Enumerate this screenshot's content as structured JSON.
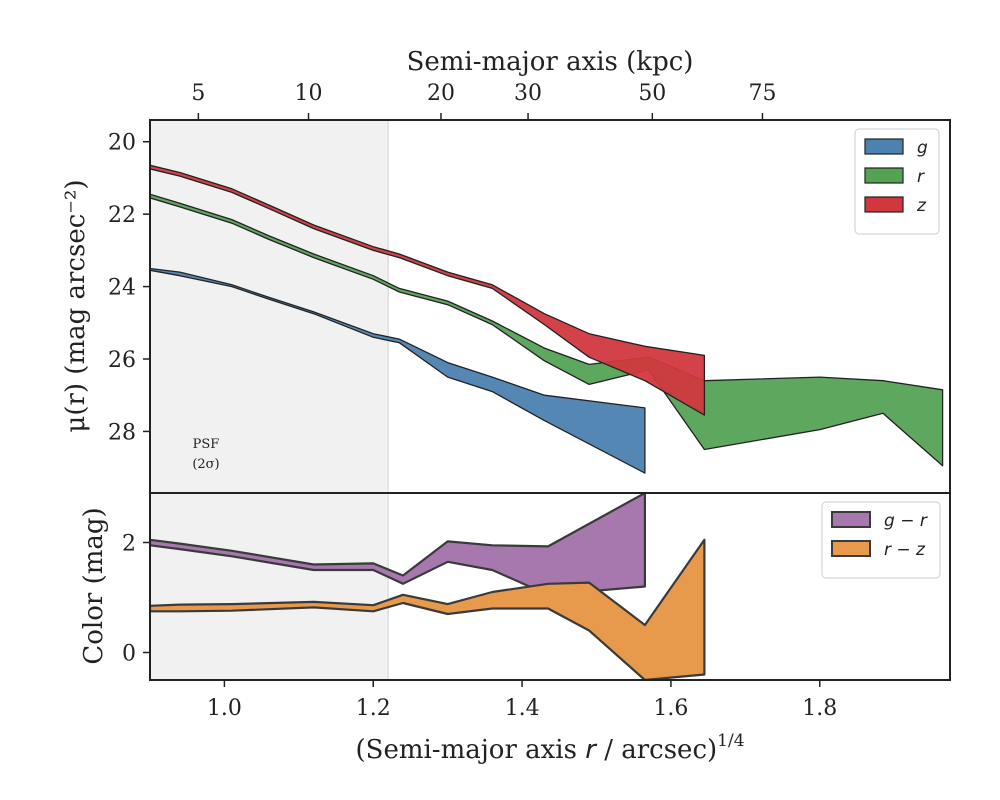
{
  "chart_data": [
    {
      "type": "area",
      "panel": "surface-brightness",
      "top_axis": {
        "label": "Semi-major axis (kpc)",
        "ticks": [
          {
            "label": "5",
            "x": 0.965
          },
          {
            "label": "10",
            "x": 1.113
          },
          {
            "label": "20",
            "x": 1.291
          },
          {
            "label": "30",
            "x": 1.408
          },
          {
            "label": "50",
            "x": 1.575
          },
          {
            "label": "75",
            "x": 1.723
          }
        ]
      },
      "xlim": [
        0.9,
        1.975
      ],
      "ylim": [
        29.7,
        19.4
      ],
      "y_inverted": true,
      "ylabel": "μ(r) (mag arcsec⁻²)",
      "yticks": [
        20,
        22,
        24,
        26,
        28
      ],
      "shaded_region": {
        "x": [
          0.9,
          1.22
        ],
        "label_lines": [
          "PSF",
          "(2σ)"
        ]
      },
      "legend": {
        "position": "top-right",
        "entries": [
          "g",
          "r",
          "z"
        ]
      },
      "series": [
        {
          "name": "g",
          "color": "#4c81b0",
          "x": [
            0.9,
            0.94,
            1.01,
            1.06,
            1.12,
            1.2,
            1.235,
            1.3,
            1.36,
            1.43,
            1.565
          ],
          "y_bright": [
            23.5,
            23.6,
            23.95,
            24.3,
            24.7,
            25.3,
            25.45,
            26.1,
            26.5,
            27.0,
            27.35
          ],
          "y_faint": [
            23.55,
            23.7,
            24.0,
            24.35,
            24.75,
            25.4,
            25.55,
            26.5,
            26.9,
            27.7,
            29.15
          ]
        },
        {
          "name": "r",
          "color": "#55a255",
          "x": [
            0.9,
            0.94,
            1.01,
            1.06,
            1.12,
            1.2,
            1.235,
            1.3,
            1.36,
            1.43,
            1.49,
            1.57,
            1.645,
            1.8,
            1.885,
            1.965
          ],
          "y_bright": [
            21.45,
            21.7,
            22.15,
            22.6,
            23.1,
            23.7,
            24.05,
            24.4,
            24.95,
            25.7,
            26.15,
            25.95,
            26.6,
            26.5,
            26.6,
            26.85
          ],
          "y_faint": [
            21.55,
            21.8,
            22.25,
            22.7,
            23.2,
            23.8,
            24.15,
            24.5,
            25.05,
            26.05,
            26.7,
            26.3,
            28.5,
            27.95,
            27.5,
            28.95
          ]
        },
        {
          "name": "z",
          "color": "#d0383e",
          "x": [
            0.9,
            0.94,
            1.01,
            1.06,
            1.12,
            1.2,
            1.235,
            1.3,
            1.36,
            1.43,
            1.49,
            1.565,
            1.645
          ],
          "y_bright": [
            20.65,
            20.85,
            21.3,
            21.75,
            22.3,
            22.9,
            23.1,
            23.6,
            23.95,
            24.75,
            25.3,
            25.65,
            25.9
          ],
          "y_faint": [
            20.75,
            20.95,
            21.4,
            21.85,
            22.4,
            23.0,
            23.2,
            23.7,
            24.05,
            25.05,
            25.95,
            26.6,
            27.55
          ]
        }
      ]
    },
    {
      "type": "area",
      "panel": "color",
      "xlim": [
        0.9,
        1.975
      ],
      "ylim": [
        -0.5,
        2.9
      ],
      "xlabel": "(Semi-major axis r / arcsec)^1/4",
      "xlabel_parts": {
        "prefix": "(Semi-major axis ",
        "var": "r",
        "suffix": " / arcsec)",
        "sup": "1/4"
      },
      "ylabel": "Color (mag)",
      "xticks": [
        "1.0",
        "1.2",
        "1.4",
        "1.6",
        "1.8"
      ],
      "xtick_values": [
        1.0,
        1.2,
        1.4,
        1.6,
        1.8
      ],
      "yticks": [
        0,
        2
      ],
      "legend": {
        "position": "top-right",
        "entries": [
          "g − r",
          "r − z"
        ]
      },
      "series": [
        {
          "name": "g − r",
          "color": "#a678ae",
          "x": [
            0.9,
            0.94,
            1.01,
            1.12,
            1.2,
            1.24,
            1.3,
            1.36,
            1.435,
            1.565
          ],
          "y_upper": [
            2.05,
            1.98,
            1.85,
            1.6,
            1.62,
            1.4,
            2.02,
            1.95,
            1.93,
            2.9
          ],
          "y_lower": [
            1.95,
            1.88,
            1.75,
            1.5,
            1.5,
            1.25,
            1.65,
            1.5,
            1.05,
            1.2
          ]
        },
        {
          "name": "r − z",
          "color": "#e89a4c",
          "x": [
            0.9,
            0.94,
            1.01,
            1.12,
            1.2,
            1.24,
            1.3,
            1.36,
            1.435,
            1.49,
            1.565,
            1.645
          ],
          "y_upper": [
            0.85,
            0.87,
            0.88,
            0.92,
            0.86,
            1.05,
            0.88,
            1.1,
            1.25,
            1.27,
            0.5,
            2.05
          ],
          "y_lower": [
            0.75,
            0.75,
            0.76,
            0.82,
            0.75,
            0.9,
            0.7,
            0.8,
            0.8,
            0.4,
            -0.5,
            -0.4
          ]
        }
      ]
    }
  ]
}
